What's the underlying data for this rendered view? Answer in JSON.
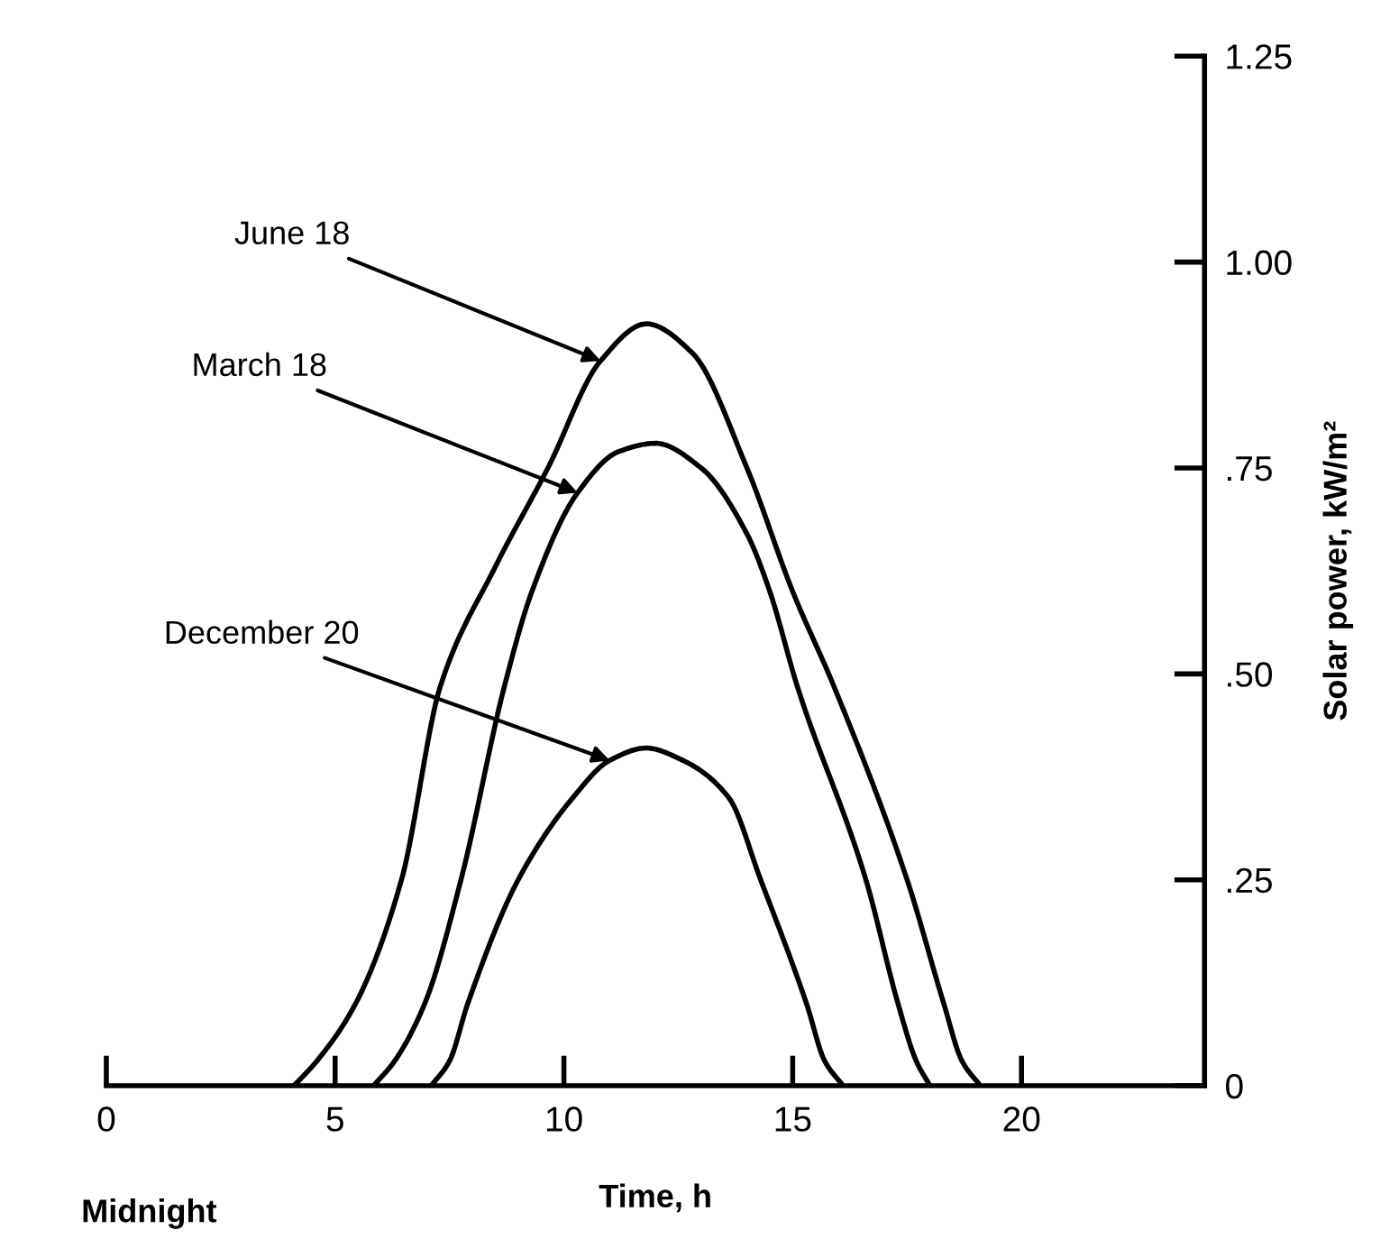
{
  "chart_data": {
    "type": "line",
    "xlabel": "Time, h",
    "ylabel": "Solar power, kW/m²",
    "xlim": [
      0,
      24
    ],
    "ylim": [
      0,
      1.25
    ],
    "xticks": [
      0,
      5,
      10,
      15,
      20
    ],
    "yticks": [
      0,
      {
        "value": 0.25,
        "label": ".25"
      },
      {
        "value": 0.5,
        "label": ".50"
      },
      {
        "value": 0.75,
        "label": ".75"
      },
      {
        "value": 1.0,
        "label": "1.00"
      },
      {
        "value": 1.25,
        "label": "1.25"
      }
    ],
    "grid": false,
    "legend": false,
    "marker": "none",
    "line_style": "solid",
    "series": [
      {
        "color": "#000000",
        "x": [
          4.1,
          4.6,
          5.45,
          6.45,
          7.3,
          8.5,
          9.65,
          10.8,
          11.8,
          12.8,
          14.0,
          15.0,
          15.9,
          17.5,
          18.3,
          18.7,
          19.1
        ],
        "values": [
          0,
          0.03,
          0.1,
          0.25,
          0.485,
          0.63,
          0.75,
          0.88,
          0.925,
          0.89,
          0.75,
          0.6,
          0.485,
          0.25,
          0.1,
          0.03,
          0
        ]
      },
      {
        "color": "#000000",
        "x": [
          5.84,
          6.3,
          6.96,
          7.75,
          8.7,
          9.3,
          10.3,
          11.2,
          12.0,
          13.0,
          14.0,
          14.5,
          15.1,
          16.6,
          17.3,
          17.7,
          18.0
        ],
        "values": [
          0,
          0.03,
          0.1,
          0.25,
          0.485,
          0.6,
          0.72,
          0.77,
          0.78,
          0.75,
          0.67,
          0.6,
          0.485,
          0.25,
          0.1,
          0.03,
          0
        ]
      },
      {
        "color": "#000000",
        "x": [
          7.1,
          7.5,
          7.9,
          9.0,
          10.2,
          11.0,
          11.8,
          12.6,
          13.6,
          14.3,
          15.3,
          15.7,
          16.1
        ],
        "values": [
          0,
          0.03,
          0.1,
          0.25,
          0.35,
          0.395,
          0.41,
          0.395,
          0.35,
          0.25,
          0.1,
          0.03,
          0
        ]
      }
    ],
    "annotations": [
      {
        "text": "June 18",
        "x": 10.8,
        "y": 0.88
      },
      {
        "text": "March 18",
        "x": 10.3,
        "y": 0.72
      },
      {
        "text": "December 20",
        "x": 11.0,
        "y": 0.395
      },
      "Midnight"
    ]
  }
}
